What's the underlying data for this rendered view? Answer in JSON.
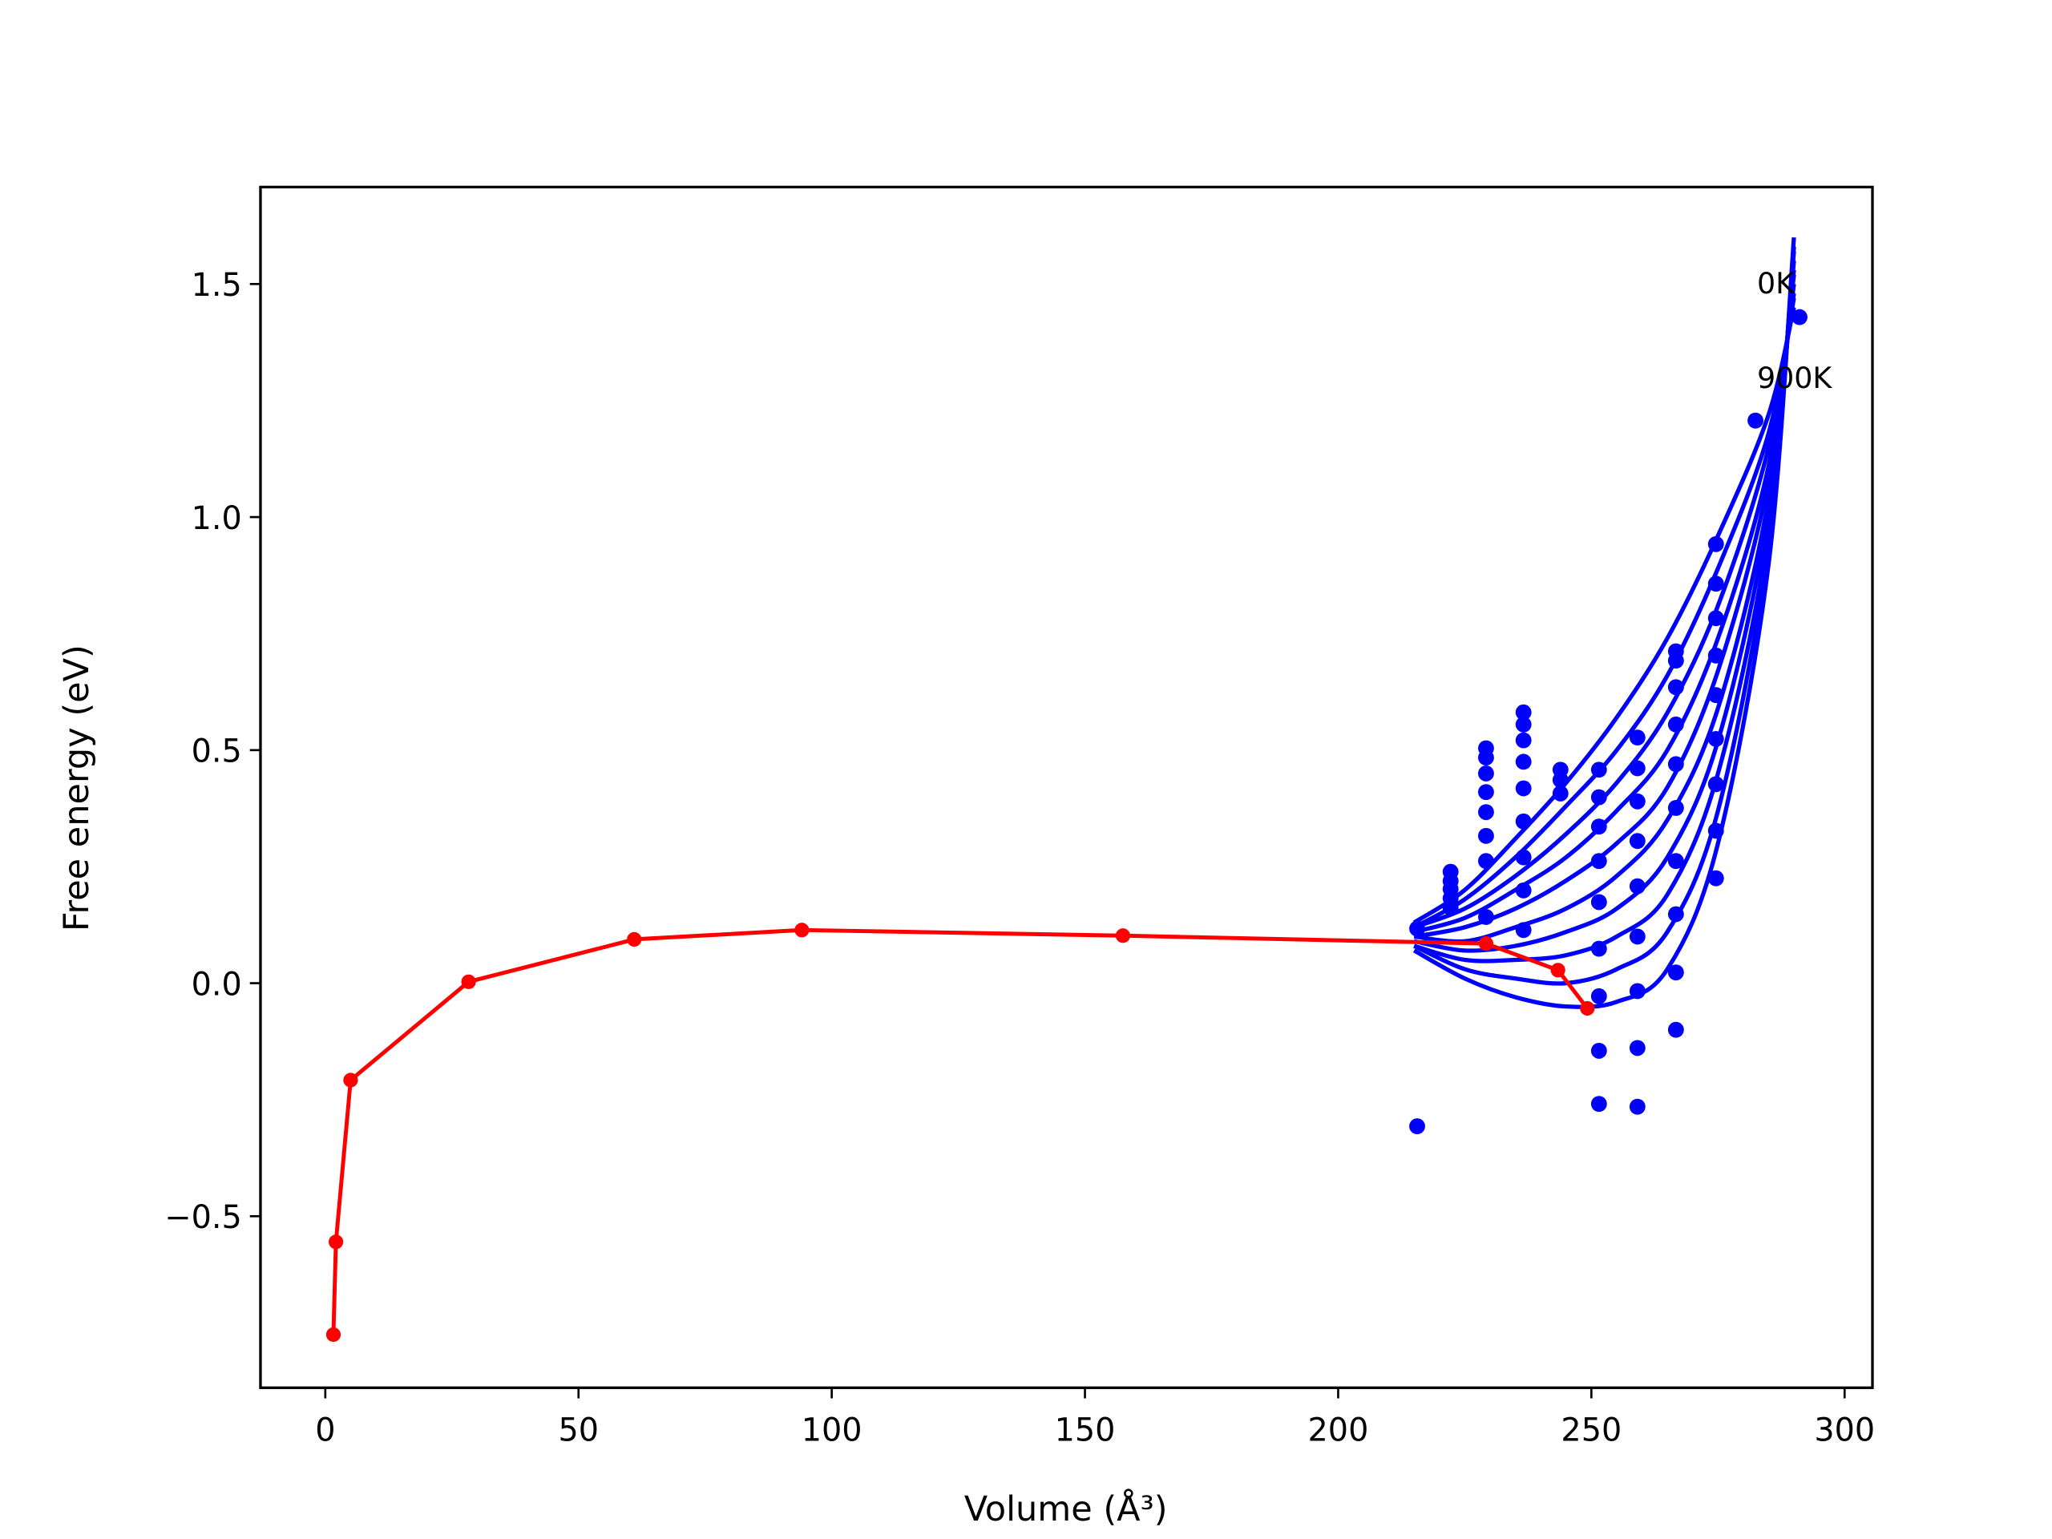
{
  "chart_data": {
    "type": "line",
    "xlabel": "Volume (Å³)",
    "ylabel": "Free energy (eV)",
    "xlim": [
      -12.8,
      305.5
    ],
    "ylim": [
      -0.868,
      1.708
    ],
    "xticks": [
      0,
      50,
      100,
      150,
      200,
      250,
      300
    ],
    "yticks": [
      {
        "value": -0.5,
        "label": "−0.5"
      },
      {
        "value": 0.0,
        "label": "0.0"
      },
      0.5,
      {
        "value": 1.0,
        "label": "1.0"
      },
      1.5
    ],
    "series": [
      {
        "color": "#ff0000",
        "marker": true,
        "x": [
          1.6,
          2.1,
          5.0,
          28.3,
          61.0,
          94.1,
          157.5,
          229.2,
          243.4,
          249.2
        ],
        "values": [
          -0.754,
          -0.555,
          -0.208,
          0.003,
          0.094,
          0.114,
          0.102,
          0.085,
          0.028,
          -0.054
        ]
      },
      {
        "color": "#0000ff",
        "x": [
          215,
          225,
          235,
          245,
          255,
          265,
          275,
          285,
          290
        ],
        "values": [
          0.07,
          0.01,
          -0.03,
          -0.05,
          -0.04,
          0.03,
          0.3,
          0.9,
          1.6
        ]
      },
      {
        "color": "#0000ff",
        "x": [
          215,
          225,
          235,
          245,
          255,
          265,
          275,
          285,
          290
        ],
        "values": [
          0.08,
          0.03,
          0.01,
          0.0,
          0.03,
          0.11,
          0.37,
          0.94,
          1.58
        ]
      },
      {
        "color": "#0000ff",
        "x": [
          215,
          225,
          235,
          245,
          255,
          265,
          275,
          285,
          290
        ],
        "values": [
          0.08,
          0.05,
          0.05,
          0.06,
          0.1,
          0.19,
          0.45,
          0.97,
          1.57
        ]
      },
      {
        "color": "#0000ff",
        "x": [
          215,
          225,
          235,
          245,
          255,
          265,
          275,
          285,
          290
        ],
        "values": [
          0.09,
          0.07,
          0.08,
          0.11,
          0.16,
          0.27,
          0.52,
          1.01,
          1.55
        ]
      },
      {
        "color": "#0000ff",
        "x": [
          215,
          225,
          235,
          245,
          255,
          265,
          275,
          285,
          290
        ],
        "values": [
          0.1,
          0.09,
          0.12,
          0.16,
          0.23,
          0.35,
          0.59,
          1.04,
          1.53
        ]
      },
      {
        "color": "#0000ff",
        "x": [
          215,
          225,
          235,
          245,
          255,
          265,
          275,
          285,
          290
        ],
        "values": [
          0.1,
          0.12,
          0.16,
          0.22,
          0.3,
          0.42,
          0.67,
          1.08,
          1.52
        ]
      },
      {
        "color": "#0000ff",
        "x": [
          215,
          225,
          235,
          245,
          255,
          265,
          275,
          285,
          290
        ],
        "values": [
          0.11,
          0.14,
          0.2,
          0.27,
          0.37,
          0.5,
          0.74,
          1.11,
          1.5
        ]
      },
      {
        "color": "#0000ff",
        "x": [
          215,
          225,
          235,
          245,
          255,
          265,
          275,
          285,
          290
        ],
        "values": [
          0.12,
          0.16,
          0.23,
          0.32,
          0.43,
          0.58,
          0.81,
          1.15,
          1.48
        ]
      },
      {
        "color": "#0000ff",
        "x": [
          215,
          225,
          235,
          245,
          255,
          265,
          275,
          285,
          290
        ],
        "values": [
          0.12,
          0.18,
          0.27,
          0.38,
          0.5,
          0.66,
          0.89,
          1.18,
          1.47
        ]
      },
      {
        "color": "#0000ff",
        "x": [
          215,
          225,
          235,
          245,
          255,
          265,
          275,
          285,
          290
        ],
        "values": [
          0.13,
          0.2,
          0.31,
          0.43,
          0.57,
          0.74,
          0.96,
          1.22,
          1.45
        ]
      }
    ],
    "points": {
      "color": "#0000ff",
      "x": [
        215.6,
        215.6,
        222.2,
        222.2,
        222.2,
        222.2,
        222.2,
        229.2,
        229.2,
        229.2,
        229.2,
        229.2,
        229.2,
        229.2,
        229.2,
        236.6,
        236.6,
        236.6,
        236.6,
        236.6,
        236.6,
        236.6,
        236.6,
        236.6,
        243.9,
        243.9,
        243.9,
        251.5,
        251.5,
        251.5,
        251.5,
        251.5,
        251.5,
        251.5,
        251.5,
        251.5,
        259.1,
        259.1,
        259.1,
        259.1,
        259.1,
        259.1,
        259.1,
        259.1,
        259.1,
        266.7,
        266.7,
        266.7,
        266.7,
        266.7,
        266.7,
        266.7,
        266.7,
        266.7,
        266.7,
        274.6,
        274.6,
        274.6,
        274.6,
        274.6,
        274.6,
        274.6,
        274.6,
        274.6,
        282.4,
        291.1
      ],
      "values": [
        -0.307,
        0.117,
        0.239,
        0.219,
        0.202,
        0.182,
        0.162,
        0.504,
        0.484,
        0.45,
        0.41,
        0.367,
        0.316,
        0.262,
        0.142,
        0.581,
        0.555,
        0.521,
        0.475,
        0.418,
        0.347,
        0.27,
        0.199,
        0.114,
        0.458,
        0.436,
        0.407,
        0.458,
        0.399,
        0.336,
        0.262,
        0.174,
        0.074,
        -0.028,
        -0.145,
        -0.259,
        0.527,
        0.461,
        0.39,
        0.305,
        0.208,
        0.1,
        -0.017,
        -0.139,
        -0.265,
        0.712,
        0.692,
        0.635,
        0.555,
        0.47,
        0.376,
        0.262,
        0.148,
        0.023,
        -0.1,
        0.942,
        0.857,
        0.783,
        0.703,
        0.618,
        0.524,
        0.427,
        0.327,
        0.225,
        1.207,
        1.429
      ]
    },
    "annotations": [
      {
        "text": "0K",
        "x": 282.7,
        "y": 1.503
      },
      {
        "text": "900K",
        "x": 282.7,
        "y": 1.3
      }
    ]
  }
}
